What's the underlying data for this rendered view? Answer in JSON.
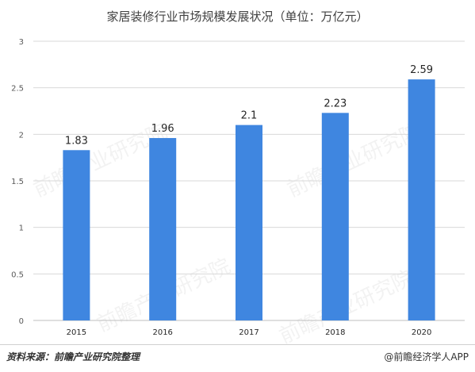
{
  "chart_data": {
    "type": "bar",
    "title": "家居装修行业市场规模发展状况（单位：万亿元）",
    "categories": [
      "2015",
      "2016",
      "2017",
      "2018",
      "2020"
    ],
    "values": [
      1.83,
      1.96,
      2.1,
      2.23,
      2.59
    ],
    "data_labels": [
      "1.83",
      "1.96",
      "2.1",
      "2.23",
      "2.59"
    ],
    "y_ticks": [
      "0",
      "0.5",
      "1",
      "1.5",
      "2",
      "2.5",
      "3"
    ],
    "ylim": [
      0,
      3
    ],
    "grid": true,
    "legend": "none",
    "bar_color": "#3f86e0",
    "watermark": "前瞻产业研究院"
  },
  "footer": {
    "source": "资料来源：前瞻产业研究院整理",
    "brand": "@前瞻经济学人APP"
  }
}
